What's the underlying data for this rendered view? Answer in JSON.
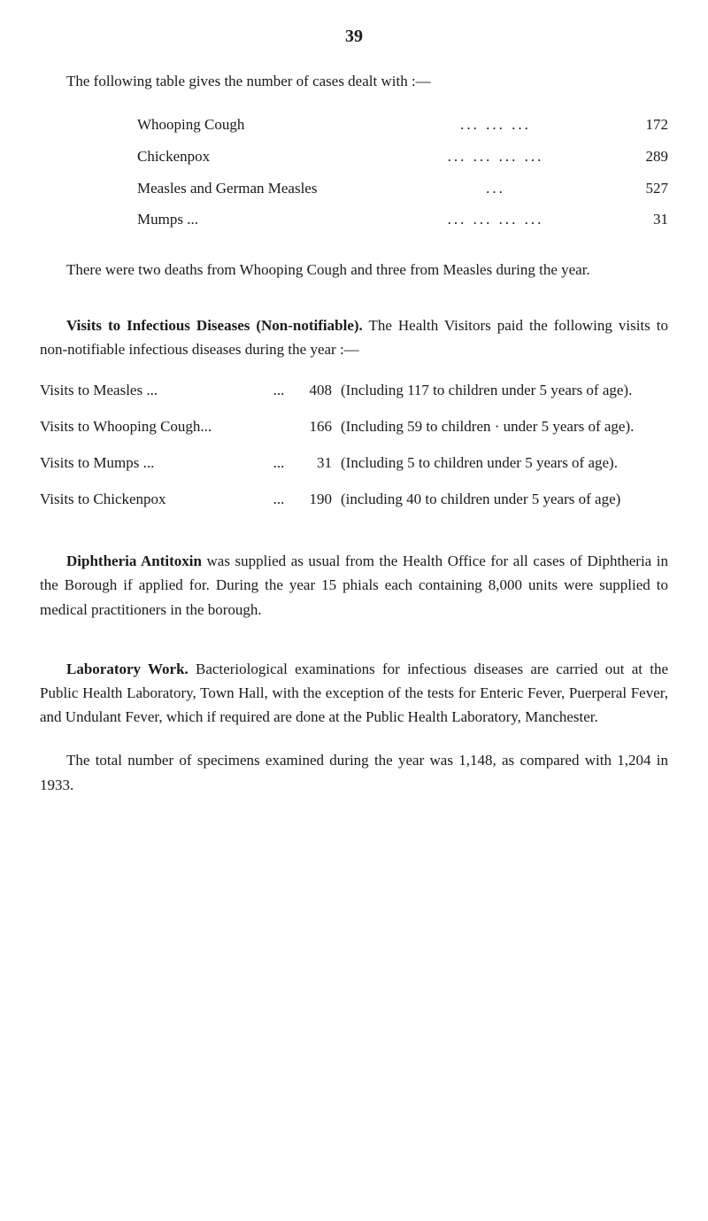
{
  "page_number": "39",
  "intro_text": "The following table gives the number of cases dealt with :—",
  "cases_table": {
    "rows": [
      {
        "label": "Whooping Cough",
        "dots": "...     ...     ...",
        "value": "172"
      },
      {
        "label": "Chickenpox",
        "dots": "...     ...     ...     ...",
        "value": "289"
      },
      {
        "label": "Measles and German Measles",
        "dots": "...",
        "value": "527"
      },
      {
        "label": "Mumps ...",
        "dots": "...     ...     ...     ...",
        "value": "31"
      }
    ]
  },
  "deaths_paragraph": "There were two deaths from Whooping Cough and three from Measles during the year.",
  "visits_section": {
    "heading_bold": "Visits to Infectious Diseases (Non-notifiable).",
    "heading_rest": "  The Health Visitors paid the following visits to non-notifiable infectious diseases during the year :—",
    "rows": [
      {
        "label": "Visits to Measles    ...",
        "dots": "...",
        "count": "408",
        "note": "(Including 117 to children under 5 years of age)."
      },
      {
        "label": "Visits to Whooping Cough...",
        "dots": "",
        "count": "166",
        "note": "(Including 59 to children · under 5 years of age)."
      },
      {
        "label": "Visits to Mumps      ...",
        "dots": "...",
        "count": "31",
        "note": "(Including 5 to children under 5 years of age)."
      },
      {
        "label": "Visits to Chickenpox",
        "dots": "...",
        "count": "190",
        "note": "(including 40 to children under 5 years of age)"
      }
    ]
  },
  "diphtheria_section": {
    "heading_bold": "Diphtheria Antitoxin",
    "text": " was supplied as usual from the Health Office for all cases of Diphtheria in the Borough if applied for. During the year 15 phials each containing 8,000 units were supplied to medical practitioners in the borough."
  },
  "laboratory_section": {
    "heading_bold": "Laboratory Work.",
    "text": "  Bacteriological examinations for infectious diseases are carried out at the Public Health Laboratory, Town Hall, with the exception of the tests for Enteric Fever, Puerperal Fever, and Undulant Fever, which if required are done at the Public Health Laboratory, Manchester."
  },
  "final_paragraph": "The total number of specimens examined during the year was 1,148, as compared with 1,204 in 1933."
}
